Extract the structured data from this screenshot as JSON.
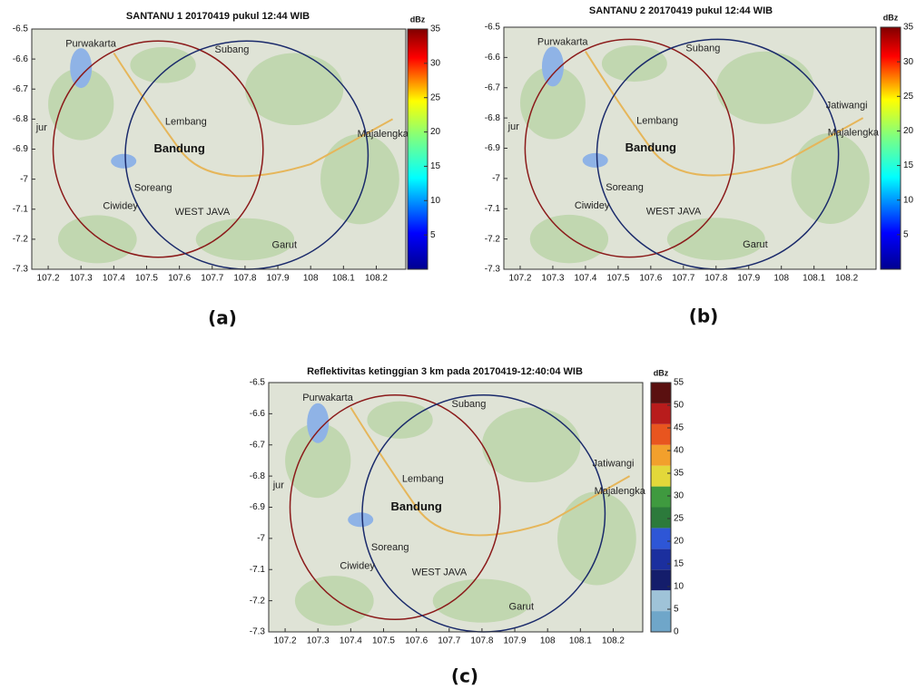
{
  "chart_data": [
    {
      "type": "map",
      "title": "SANTANU 1 20170419 pukul 12:44 WIB",
      "panel_label": "(a)",
      "xlim": [
        107.15,
        108.29
      ],
      "ylim": [
        -7.3,
        -6.5
      ],
      "xticks": [
        107.2,
        107.3,
        107.4,
        107.5,
        107.6,
        107.7,
        107.8,
        107.9,
        108,
        108.1,
        108.2
      ],
      "yticks": [
        -6.5,
        -6.6,
        -6.7,
        -6.8,
        -6.9,
        -7,
        -7.1,
        -7.2,
        -7.3
      ],
      "colorbar": {
        "label": "dBz",
        "lim": [
          0,
          35
        ],
        "ticks": [
          5,
          10,
          15,
          20,
          25,
          30,
          35
        ]
      },
      "places": [
        "Purwakarta",
        "Subang",
        "Lembang",
        "Bandung",
        "Soreang",
        "Ciwidey",
        "WEST JAVA",
        "Garut",
        "Majalengka",
        "jur"
      ]
    },
    {
      "type": "map",
      "title": "SANTANU 2 20170419 pukul 12:44 WIB",
      "panel_label": "(b)",
      "xlim": [
        107.15,
        108.29
      ],
      "ylim": [
        -7.3,
        -6.5
      ],
      "xticks": [
        107.2,
        107.3,
        107.4,
        107.5,
        107.6,
        107.7,
        107.8,
        107.9,
        108,
        108.1,
        108.2
      ],
      "yticks": [
        -6.5,
        -6.6,
        -6.7,
        -6.8,
        -6.9,
        -7,
        -7.1,
        -7.2,
        -7.3
      ],
      "colorbar": {
        "label": "dBz",
        "lim": [
          0,
          35
        ],
        "ticks": [
          5,
          10,
          15,
          20,
          25,
          30,
          35
        ]
      },
      "places": [
        "Purwakarta",
        "Subang",
        "Lembang",
        "Bandung",
        "Soreang",
        "Ciwidey",
        "WEST JAVA",
        "Garut",
        "Jatiwangi",
        "Majalengka",
        "jur"
      ]
    },
    {
      "type": "map",
      "title": "Reflektivitas ketinggian 3 km pada 20170419-12:40:04 WIB",
      "panel_label": "(c)",
      "xlim": [
        107.15,
        108.29
      ],
      "ylim": [
        -7.3,
        -6.5
      ],
      "xticks": [
        107.2,
        107.3,
        107.4,
        107.5,
        107.6,
        107.7,
        107.8,
        107.9,
        108,
        108.1,
        108.2
      ],
      "yticks": [
        -6.5,
        -6.6,
        -6.7,
        -6.8,
        -6.9,
        -7,
        -7.1,
        -7.2,
        -7.3
      ],
      "colorbar": {
        "label": "dBz",
        "lim": [
          0,
          55
        ],
        "ticks": [
          0,
          5,
          10,
          15,
          20,
          25,
          30,
          35,
          40,
          45,
          50,
          55
        ]
      },
      "places": [
        "Purwakarta",
        "Subang",
        "Lembang",
        "Bandung",
        "Soreang",
        "Ciwidey",
        "WEST JAVA",
        "Garut",
        "Jatiwangi",
        "Majalengka",
        "jur"
      ]
    }
  ]
}
